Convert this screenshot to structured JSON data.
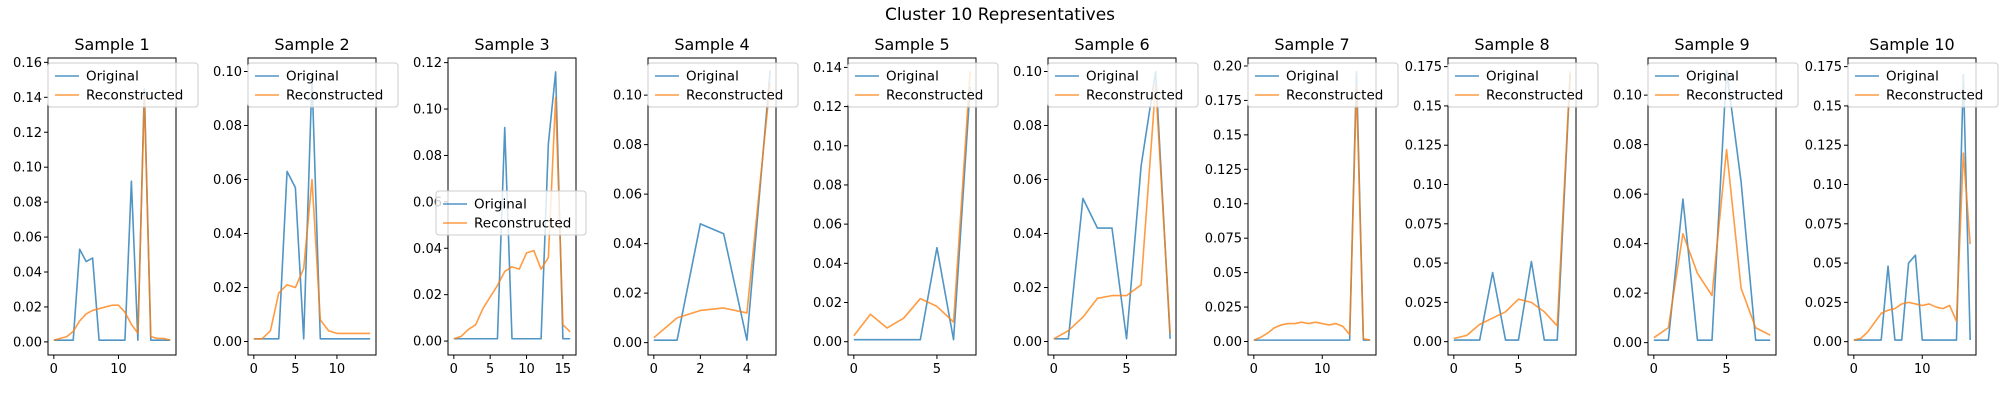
{
  "chart_data": {
    "type": "line",
    "title": "Cluster 10 Representatives",
    "series_names": [
      "Original",
      "Reconstructed"
    ],
    "colors": {
      "original": "#1f77b4",
      "reconstructed": "#ff7f0e"
    },
    "legend": "upper",
    "panels": [
      {
        "title": "Sample 1",
        "original": [
          0.001,
          0.001,
          0.001,
          0.001,
          0.053,
          0.046,
          0.048,
          0.001,
          0.001,
          0.001,
          0.001,
          0.001,
          0.092,
          0.001,
          0.145,
          0.001,
          0.001,
          0.001,
          0.001
        ],
        "reconstructed": [
          0.001,
          0.002,
          0.003,
          0.006,
          0.012,
          0.016,
          0.018,
          0.019,
          0.02,
          0.021,
          0.021,
          0.017,
          0.01,
          0.005,
          0.14,
          0.003,
          0.002,
          0.002,
          0.001
        ],
        "ylim": [
          -0.0075,
          0.1625
        ],
        "yticks": [
          0.0,
          0.02,
          0.04,
          0.06,
          0.08,
          0.1,
          0.12,
          0.14,
          0.16
        ],
        "xlim": [
          -0.9,
          18.9
        ],
        "xticks": [
          0,
          10
        ],
        "legend": "upper right"
      },
      {
        "title": "Sample 2",
        "original": [
          0.001,
          0.001,
          0.001,
          0.001,
          0.063,
          0.057,
          0.001,
          0.098,
          0.001,
          0.001,
          0.001,
          0.001,
          0.001,
          0.001,
          0.001
        ],
        "reconstructed": [
          0.001,
          0.001,
          0.004,
          0.018,
          0.021,
          0.02,
          0.027,
          0.06,
          0.008,
          0.004,
          0.003,
          0.003,
          0.003,
          0.003,
          0.003
        ],
        "ylim": [
          -0.005,
          0.105
        ],
        "yticks": [
          0.0,
          0.02,
          0.04,
          0.06,
          0.08,
          0.1
        ],
        "xlim": [
          -0.7,
          14.7
        ],
        "xticks": [
          0,
          5,
          10
        ],
        "legend": "upper right"
      },
      {
        "title": "Sample 3",
        "original": [
          0.001,
          0.001,
          0.001,
          0.001,
          0.001,
          0.001,
          0.001,
          0.092,
          0.001,
          0.001,
          0.001,
          0.001,
          0.001,
          0.085,
          0.116,
          0.001,
          0.001
        ],
        "reconstructed": [
          0.001,
          0.002,
          0.005,
          0.007,
          0.014,
          0.019,
          0.024,
          0.03,
          0.032,
          0.031,
          0.038,
          0.039,
          0.031,
          0.036,
          0.105,
          0.007,
          0.004
        ],
        "ylim": [
          -0.006,
          0.122
        ],
        "yticks": [
          0.0,
          0.02,
          0.04,
          0.06,
          0.08,
          0.1,
          0.12
        ],
        "xlim": [
          -0.8,
          16.8
        ],
        "xticks": [
          0,
          5,
          10,
          15
        ],
        "legend": "center right"
      },
      {
        "title": "Sample 4",
        "original": [
          0.001,
          0.001,
          0.048,
          0.044,
          0.001,
          0.11
        ],
        "reconstructed": [
          0.002,
          0.01,
          0.013,
          0.014,
          0.012,
          0.105
        ],
        "ylim": [
          -0.005,
          0.115
        ],
        "yticks": [
          0.0,
          0.02,
          0.04,
          0.06,
          0.08,
          0.1
        ],
        "xlim": [
          -0.25,
          5.25
        ],
        "xticks": [
          0,
          2,
          4
        ],
        "legend": "upper right"
      },
      {
        "title": "Sample 5",
        "original": [
          0.001,
          0.001,
          0.001,
          0.001,
          0.001,
          0.048,
          0.001,
          0.13
        ],
        "reconstructed": [
          0.003,
          0.014,
          0.007,
          0.012,
          0.022,
          0.018,
          0.01,
          0.138
        ],
        "ylim": [
          -0.0068,
          0.1448
        ],
        "yticks": [
          0.0,
          0.02,
          0.04,
          0.06,
          0.08,
          0.1,
          0.12,
          0.14
        ],
        "xlim": [
          -0.35,
          7.35
        ],
        "xticks": [
          0,
          5
        ],
        "legend": "upper right"
      },
      {
        "title": "Sample 6",
        "original": [
          0.001,
          0.001,
          0.053,
          0.042,
          0.042,
          0.001,
          0.065,
          0.1,
          0.001
        ],
        "reconstructed": [
          0.001,
          0.004,
          0.009,
          0.016,
          0.017,
          0.017,
          0.021,
          0.095,
          0.003
        ],
        "ylim": [
          -0.005,
          0.105
        ],
        "yticks": [
          0.0,
          0.02,
          0.04,
          0.06,
          0.08,
          0.1
        ],
        "xlim": [
          -0.4,
          8.4
        ],
        "xticks": [
          0,
          5
        ],
        "legend": "upper right"
      },
      {
        "title": "Sample 7",
        "original": [
          0.001,
          0.001,
          0.001,
          0.001,
          0.001,
          0.001,
          0.001,
          0.001,
          0.001,
          0.001,
          0.001,
          0.001,
          0.001,
          0.001,
          0.001,
          0.196,
          0.001,
          0.001
        ],
        "reconstructed": [
          0.001,
          0.003,
          0.006,
          0.01,
          0.012,
          0.013,
          0.013,
          0.014,
          0.013,
          0.014,
          0.013,
          0.012,
          0.013,
          0.011,
          0.005,
          0.185,
          0.002,
          0.001
        ],
        "ylim": [
          -0.0098,
          0.2058
        ],
        "yticks": [
          0.0,
          0.025,
          0.05,
          0.075,
          0.1,
          0.125,
          0.15,
          0.175,
          0.2
        ],
        "xlim": [
          -0.85,
          17.85
        ],
        "xticks": [
          0,
          10
        ],
        "legend": "upper right"
      },
      {
        "title": "Sample 8",
        "original": [
          0.001,
          0.001,
          0.001,
          0.044,
          0.001,
          0.001,
          0.051,
          0.001,
          0.001,
          0.17
        ],
        "reconstructed": [
          0.002,
          0.004,
          0.011,
          0.015,
          0.019,
          0.027,
          0.025,
          0.019,
          0.01,
          0.172
        ],
        "ylim": [
          -0.0085,
          0.1805
        ],
        "yticks": [
          0.0,
          0.025,
          0.05,
          0.075,
          0.1,
          0.125,
          0.15,
          0.175
        ],
        "xlim": [
          -0.45,
          9.45
        ],
        "xticks": [
          0,
          5
        ],
        "legend": "upper right"
      },
      {
        "title": "Sample 9",
        "original": [
          0.001,
          0.001,
          0.058,
          0.001,
          0.001,
          0.11,
          0.065,
          0.001,
          0.001
        ],
        "reconstructed": [
          0.002,
          0.006,
          0.044,
          0.028,
          0.019,
          0.078,
          0.022,
          0.006,
          0.003
        ],
        "ylim": [
          -0.005,
          0.115
        ],
        "yticks": [
          0.0,
          0.02,
          0.04,
          0.06,
          0.08,
          0.1
        ],
        "xlim": [
          -0.4,
          8.4
        ],
        "xticks": [
          0,
          5
        ],
        "legend": "upper right"
      },
      {
        "title": "Sample 10",
        "original": [
          0.001,
          0.001,
          0.001,
          0.001,
          0.001,
          0.048,
          0.001,
          0.001,
          0.05,
          0.055,
          0.001,
          0.001,
          0.001,
          0.001,
          0.001,
          0.001,
          0.17,
          0.001
        ],
        "reconstructed": [
          0.001,
          0.002,
          0.006,
          0.012,
          0.018,
          0.02,
          0.021,
          0.024,
          0.025,
          0.024,
          0.023,
          0.024,
          0.022,
          0.021,
          0.023,
          0.013,
          0.12,
          0.062
        ],
        "ylim": [
          -0.0085,
          0.1805
        ],
        "yticks": [
          0.0,
          0.025,
          0.05,
          0.075,
          0.1,
          0.125,
          0.15,
          0.175
        ],
        "xlim": [
          -0.85,
          17.85
        ],
        "xticks": [
          0,
          10
        ],
        "legend": "upper right"
      }
    ]
  }
}
